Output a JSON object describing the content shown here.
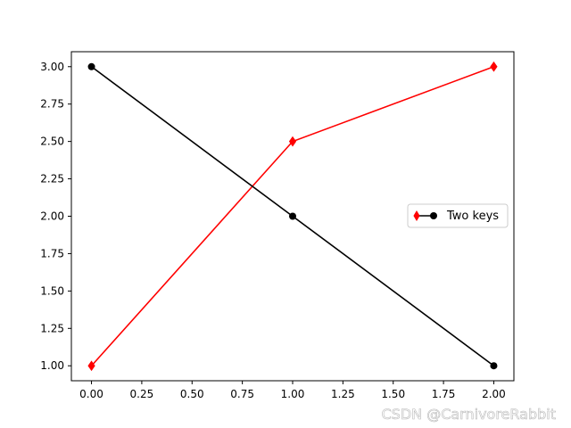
{
  "chart_data": {
    "type": "line",
    "x": [
      0,
      1,
      2
    ],
    "series": [
      {
        "values": [
          1.0,
          2.5,
          3.0
        ],
        "color": "#ff0000",
        "marker": "diamond"
      },
      {
        "values": [
          3.0,
          2.0,
          1.0
        ],
        "color": "#000000",
        "marker": "circle"
      }
    ],
    "legend": {
      "label": "Two keys",
      "location": "center-right"
    },
    "xlim": [
      -0.1,
      2.1
    ],
    "ylim": [
      0.9,
      3.1
    ],
    "xticks": [
      "0.00",
      "0.25",
      "0.50",
      "0.75",
      "1.00",
      "1.25",
      "1.50",
      "1.75",
      "2.00"
    ],
    "yticks": [
      "1.00",
      "1.25",
      "1.50",
      "1.75",
      "2.00",
      "2.25",
      "2.50",
      "2.75",
      "3.00"
    ],
    "grid": false
  },
  "watermark": "CSDN @CarnivoreRabbit"
}
